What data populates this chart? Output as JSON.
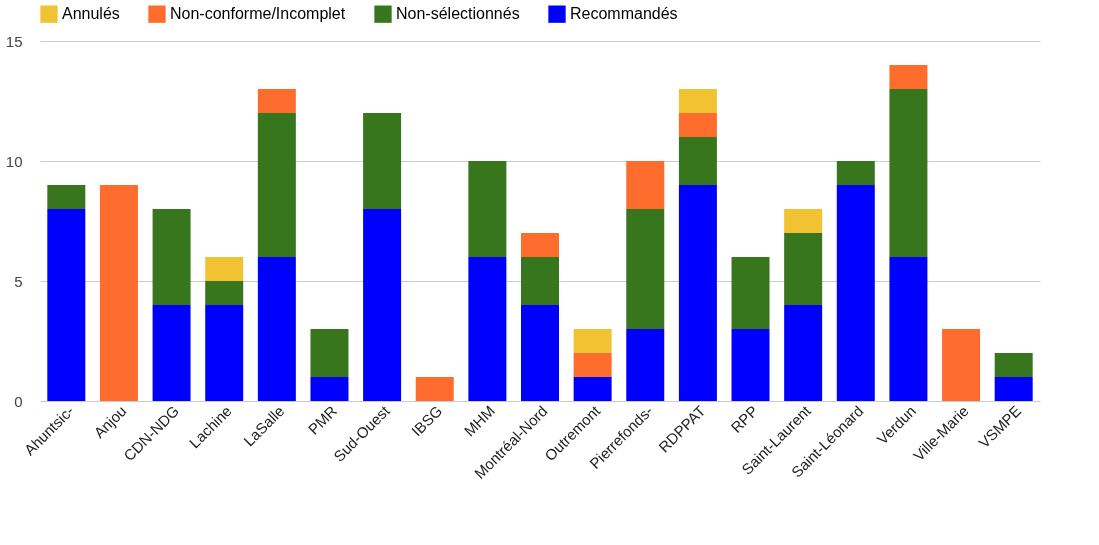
{
  "chart_data": {
    "type": "bar",
    "stacked": true,
    "categories": [
      "Ahuntsic-",
      "Anjou",
      "CDN-NDG",
      "Lachine",
      "LaSalle",
      "PMR",
      "Sud-Ouest",
      "IBSG",
      "MHM",
      "Montréal-Nord",
      "Outremont",
      "Pierrefonds-",
      "RDPPAT",
      "RPP",
      "Saint-Laurent",
      "Saint-Léonard",
      "Verdun",
      "Ville-Marie",
      "VSMPE"
    ],
    "series": [
      {
        "name": "Recommandés",
        "color": "#0000ff",
        "values": [
          8,
          null,
          4,
          4,
          6,
          1,
          8,
          null,
          6,
          4,
          1,
          3,
          9,
          3,
          4,
          9,
          6,
          null,
          1
        ]
      },
      {
        "name": "Non-sélectionnés",
        "color": "#38761d",
        "values": [
          1,
          null,
          4,
          1,
          6,
          2,
          4,
          null,
          4,
          2,
          null,
          5,
          2,
          3,
          3,
          1,
          7,
          null,
          1
        ]
      },
      {
        "name": "Non-conforme/Incomplet",
        "color": "#ff6d2e",
        "values": [
          null,
          9,
          null,
          null,
          1,
          null,
          null,
          1,
          null,
          1,
          1,
          2,
          1,
          null,
          null,
          null,
          1,
          3,
          null
        ]
      },
      {
        "name": "Annulés",
        "color": "#f1c232",
        "values": [
          null,
          null,
          null,
          1,
          null,
          null,
          null,
          null,
          null,
          null,
          1,
          null,
          1,
          null,
          1,
          null,
          null,
          null,
          null
        ]
      }
    ],
    "ylim": [
      0,
      15
    ],
    "yticks": [
      0,
      5,
      10,
      15
    ],
    "grid": "y",
    "legend": "top"
  }
}
